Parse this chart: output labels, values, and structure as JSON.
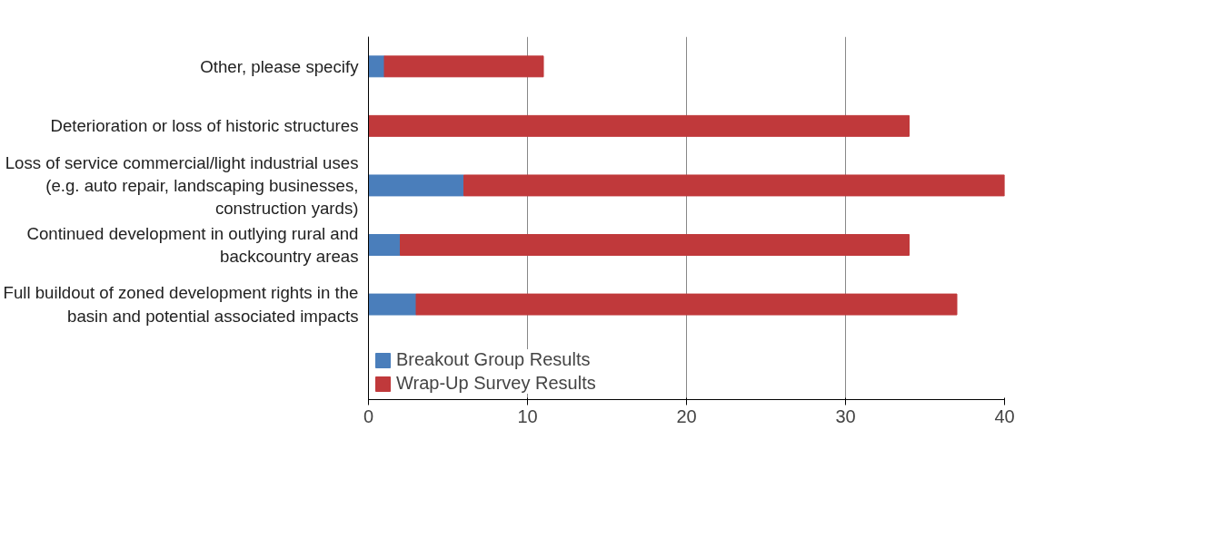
{
  "chart_data": {
    "type": "bar",
    "orientation": "horizontal",
    "stacked": true,
    "categories": [
      "Other, please specify",
      "Deterioration or loss of historic structures",
      "Loss of service commercial/light industrial uses (e.g. auto repair, landscaping businesses, construction yards)",
      "Continued development in outlying rural and backcountry areas",
      "Full buildout of zoned development rights in the basin and potential associated impacts"
    ],
    "series": [
      {
        "name": "Breakout Group Results",
        "color": "#4a7ebb",
        "values": [
          1,
          0,
          6,
          2,
          3
        ]
      },
      {
        "name": "Wrap-Up Survey Results",
        "color": "#c0393b",
        "values": [
          10,
          34,
          34,
          32,
          34
        ]
      }
    ],
    "xlim": [
      0,
      40
    ],
    "xticks": [
      0,
      10,
      20,
      30,
      40
    ],
    "grid": "x",
    "legend": "bottom left"
  }
}
